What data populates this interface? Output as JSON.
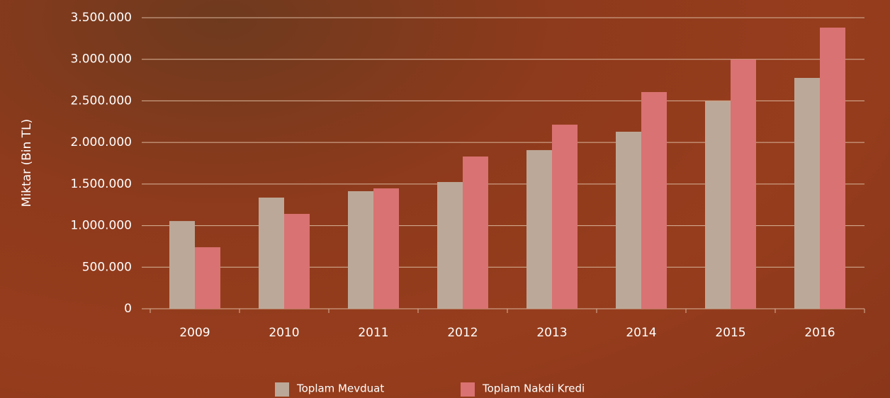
{
  "chart_data": {
    "type": "bar",
    "ylabel": "Miktar (Bin TL)",
    "categories": [
      "2009",
      "2010",
      "2011",
      "2012",
      "2013",
      "2014",
      "2015",
      "2016"
    ],
    "series": [
      {
        "name": "Toplam Mevduat",
        "color": "#bca898",
        "values": [
          1055000,
          1337000,
          1414000,
          1524000,
          1908000,
          2129000,
          2495000,
          2776000
        ]
      },
      {
        "name": "Toplam Nakdi Kredi",
        "color": "#d97272",
        "values": [
          740000,
          1141000,
          1448000,
          1831000,
          2214000,
          2606000,
          2998000,
          3381000
        ]
      }
    ],
    "ylim": [
      0,
      3500000
    ],
    "yticks": [
      0,
      {
        "value": 500000,
        "label": "500.000"
      },
      {
        "value": 1000000,
        "label": "1.000.000"
      },
      {
        "value": 1500000,
        "label": "1.500.000"
      },
      {
        "value": 2000000,
        "label": "2.000.000"
      },
      {
        "value": 2500000,
        "label": "2.500.000"
      },
      {
        "value": 3000000,
        "label": "3.000.000"
      },
      {
        "value": 3500000,
        "label": "3.500.000"
      }
    ],
    "grid": true
  }
}
